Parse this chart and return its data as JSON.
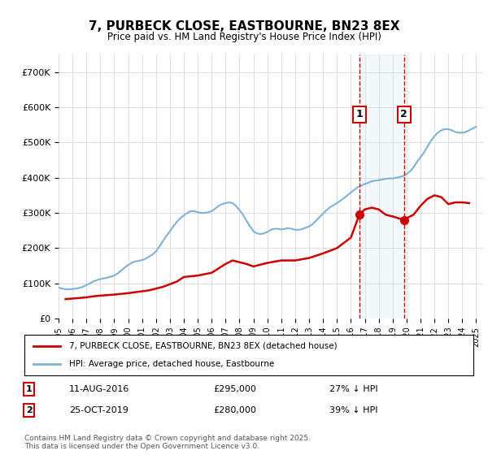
{
  "title": "7, PURBECK CLOSE, EASTBOURNE, BN23 8EX",
  "subtitle": "Price paid vs. HM Land Registry's House Price Index (HPI)",
  "ylabel": "",
  "ylim": [
    0,
    750000
  ],
  "yticks": [
    0,
    100000,
    200000,
    300000,
    400000,
    500000,
    600000,
    700000
  ],
  "ytick_labels": [
    "£0",
    "£100K",
    "£200K",
    "£300K",
    "£400K",
    "£500K",
    "£600K",
    "£700K"
  ],
  "xlim_start": 1995.0,
  "xlim_end": 2025.5,
  "background_color": "#ffffff",
  "plot_bg_color": "#ffffff",
  "grid_color": "#dddddd",
  "hpi_color": "#7fb3d3",
  "price_color": "#cc0000",
  "dashed_line_color": "#cc0000",
  "shade_color": "#d0e4f0",
  "sale1_date": 2016.61,
  "sale2_date": 2019.82,
  "sale1_price": 295000,
  "sale2_price": 280000,
  "sale1_label": "11-AUG-2016",
  "sale2_label": "25-OCT-2019",
  "sale1_pct": "27% ↓ HPI",
  "sale2_pct": "39% ↓ HPI",
  "legend_entry1": "7, PURBECK CLOSE, EASTBOURNE, BN23 8EX (detached house)",
  "legend_entry2": "HPI: Average price, detached house, Eastbourne",
  "footnote": "Contains HM Land Registry data © Crown copyright and database right 2025.\nThis data is licensed under the Open Government Licence v3.0.",
  "hpi_x": [
    1995.0,
    1995.25,
    1995.5,
    1995.75,
    1996.0,
    1996.25,
    1996.5,
    1996.75,
    1997.0,
    1997.25,
    1997.5,
    1997.75,
    1998.0,
    1998.25,
    1998.5,
    1998.75,
    1999.0,
    1999.25,
    1999.5,
    1999.75,
    2000.0,
    2000.25,
    2000.5,
    2000.75,
    2001.0,
    2001.25,
    2001.5,
    2001.75,
    2002.0,
    2002.25,
    2002.5,
    2002.75,
    2003.0,
    2003.25,
    2003.5,
    2003.75,
    2004.0,
    2004.25,
    2004.5,
    2004.75,
    2005.0,
    2005.25,
    2005.5,
    2005.75,
    2006.0,
    2006.25,
    2006.5,
    2006.75,
    2007.0,
    2007.25,
    2007.5,
    2007.75,
    2008.0,
    2008.25,
    2008.5,
    2008.75,
    2009.0,
    2009.25,
    2009.5,
    2009.75,
    2010.0,
    2010.25,
    2010.5,
    2010.75,
    2011.0,
    2011.25,
    2011.5,
    2011.75,
    2012.0,
    2012.25,
    2012.5,
    2012.75,
    2013.0,
    2013.25,
    2013.5,
    2013.75,
    2014.0,
    2014.25,
    2014.5,
    2014.75,
    2015.0,
    2015.25,
    2015.5,
    2015.75,
    2016.0,
    2016.25,
    2016.5,
    2016.75,
    2017.0,
    2017.25,
    2017.5,
    2017.75,
    2018.0,
    2018.25,
    2018.5,
    2018.75,
    2019.0,
    2019.25,
    2019.5,
    2019.75,
    2020.0,
    2020.25,
    2020.5,
    2020.75,
    2021.0,
    2021.25,
    2021.5,
    2021.75,
    2022.0,
    2022.25,
    2022.5,
    2022.75,
    2023.0,
    2023.25,
    2023.5,
    2023.75,
    2024.0,
    2024.25,
    2024.5,
    2024.75,
    2025.0
  ],
  "hpi_y": [
    88000,
    85000,
    83000,
    83000,
    84000,
    85000,
    87000,
    90000,
    95000,
    100000,
    105000,
    109000,
    112000,
    114000,
    116000,
    119000,
    122000,
    128000,
    136000,
    145000,
    152000,
    158000,
    162000,
    164000,
    166000,
    170000,
    176000,
    182000,
    191000,
    205000,
    220000,
    235000,
    248000,
    262000,
    275000,
    285000,
    293000,
    300000,
    305000,
    305000,
    302000,
    300000,
    300000,
    302000,
    305000,
    312000,
    320000,
    325000,
    328000,
    330000,
    328000,
    320000,
    308000,
    295000,
    278000,
    262000,
    248000,
    242000,
    240000,
    242000,
    246000,
    252000,
    255000,
    255000,
    253000,
    255000,
    257000,
    255000,
    252000,
    252000,
    254000,
    258000,
    262000,
    268000,
    278000,
    288000,
    298000,
    308000,
    316000,
    322000,
    328000,
    335000,
    342000,
    350000,
    358000,
    366000,
    373000,
    378000,
    382000,
    386000,
    390000,
    392000,
    393000,
    395000,
    397000,
    398000,
    398000,
    400000,
    402000,
    405000,
    410000,
    418000,
    430000,
    445000,
    458000,
    472000,
    488000,
    505000,
    518000,
    528000,
    535000,
    538000,
    538000,
    535000,
    530000,
    528000,
    528000,
    530000,
    535000,
    540000,
    545000
  ],
  "price_x": [
    1995.5,
    1997.0,
    1997.5,
    1998.0,
    1999.0,
    2000.0,
    2001.5,
    2002.5,
    2003.5,
    2004.0,
    2005.0,
    2006.0,
    2007.0,
    2007.5,
    2008.5,
    2009.0,
    2010.0,
    2011.0,
    2012.0,
    2013.0,
    2014.0,
    2015.0,
    2016.0,
    2016.61,
    2017.0,
    2017.5,
    2018.0,
    2018.5,
    2019.0,
    2019.82,
    2020.0,
    2020.5,
    2021.0,
    2021.5,
    2022.0,
    2022.5,
    2023.0,
    2023.5,
    2024.0,
    2024.5
  ],
  "price_y": [
    55000,
    60000,
    63000,
    65000,
    68000,
    72000,
    80000,
    90000,
    105000,
    118000,
    122000,
    130000,
    155000,
    165000,
    155000,
    148000,
    158000,
    165000,
    165000,
    172000,
    185000,
    200000,
    230000,
    295000,
    310000,
    315000,
    310000,
    295000,
    290000,
    280000,
    285000,
    295000,
    320000,
    340000,
    350000,
    345000,
    325000,
    330000,
    330000,
    328000
  ]
}
